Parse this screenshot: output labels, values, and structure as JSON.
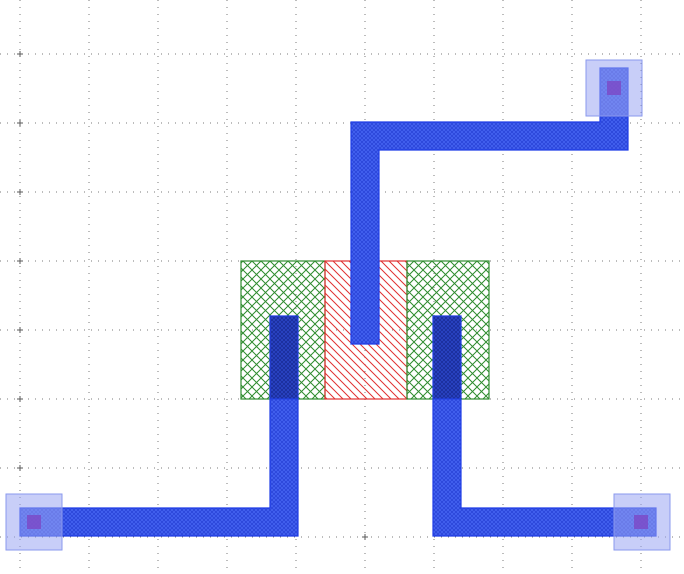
{
  "colors": {
    "background": "#ffffff",
    "grid_dot": "#7a7a7a",
    "grid_cross": "#5a5a5a",
    "diffusion": "#2e8b2e",
    "poly": "#e03030",
    "metal": "#1e3ce6",
    "metal_fill": "#3b5bf0",
    "via_frame": "#9aa6f2",
    "via_core": "#7b4bc8"
  },
  "layers": [
    {
      "name": "diffusion-left",
      "kind": "diffusion"
    },
    {
      "name": "poly-gate",
      "kind": "poly"
    },
    {
      "name": "diffusion-right",
      "kind": "diffusion"
    },
    {
      "name": "metal-gate-route",
      "kind": "metal"
    },
    {
      "name": "metal-left-route",
      "kind": "metal"
    },
    {
      "name": "metal-right-route",
      "kind": "metal"
    }
  ],
  "contacts": [
    {
      "name": "via-top-right"
    },
    {
      "name": "via-bottom-left"
    },
    {
      "name": "via-bottom-right"
    }
  ]
}
